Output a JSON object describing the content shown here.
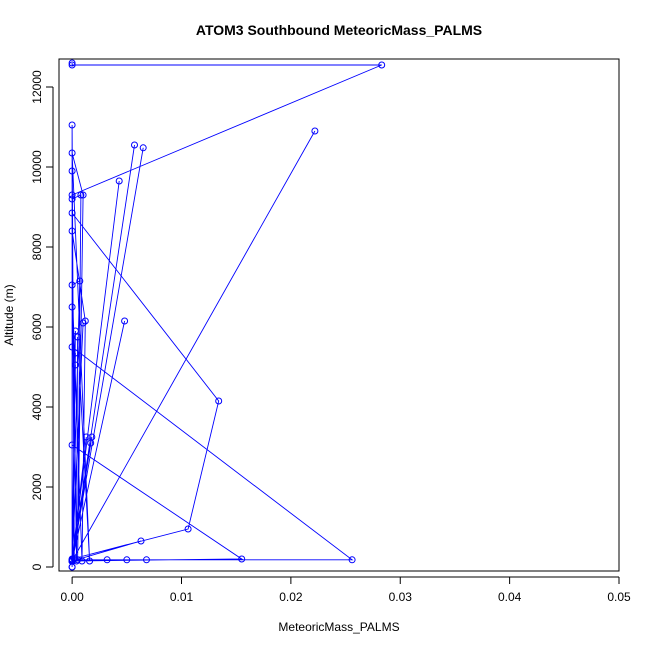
{
  "chart_data": {
    "type": "line",
    "title": "ATOM3 Southbound MeteoricMass_PALMS",
    "xlabel": "MeteoricMass_PALMS",
    "ylabel": "Altitude (m)",
    "xlim": [
      -0.0012,
      0.05
    ],
    "ylim": [
      -100,
      12700
    ],
    "x_ticks": [
      0.0,
      0.01,
      0.02,
      0.03,
      0.04,
      0.05
    ],
    "x_tick_labels": [
      "0.00",
      "0.01",
      "0.02",
      "0.03",
      "0.04",
      "0.05"
    ],
    "y_ticks": [
      0,
      2000,
      4000,
      6000,
      8000,
      10000,
      12000
    ],
    "y_tick_labels": [
      "0",
      "2000",
      "4000",
      "6000",
      "8000",
      "10000",
      "12000"
    ],
    "grid": false,
    "legend": false,
    "series_color": "#0000ff",
    "x": [
      0.0,
      0.0,
      0.0283,
      0.0,
      0.0,
      0.0002,
      0.0,
      0.0008,
      0.0005,
      0.001,
      0.0,
      0.0016,
      0.0005,
      0.0004,
      0.0,
      0.0012,
      0.0009,
      0.0,
      0.0007,
      0.0,
      0.0003,
      0.0,
      0.0048,
      0.0,
      0.0003,
      0.0,
      0.0057,
      0.0,
      0.001,
      0.0,
      0.0043,
      0.0,
      0.0065,
      0.0,
      0.0,
      0.0134,
      0.0106,
      0.0,
      0.0063,
      0.0,
      0.0222,
      0.0,
      0.0017,
      0.0,
      0.0013,
      0.0,
      0.0003,
      0.0,
      0.0018,
      0.0,
      0.0,
      0.0256,
      0.0,
      0.0,
      0.0155,
      0.0,
      0.0,
      0.0,
      0.0068,
      0.0,
      0.005,
      0.0,
      0.0032,
      0.0,
      0.0,
      0.0,
      0.0
    ],
    "y": [
      12600,
      12550,
      12550,
      9300,
      11050,
      200,
      9200,
      9300,
      180,
      9300,
      10350,
      150,
      5750,
      150,
      8400,
      6150,
      150,
      7050,
      7150,
      150,
      5900,
      150,
      6150,
      150,
      5350,
      150,
      10550,
      150,
      6100,
      150,
      9650,
      150,
      10480,
      150,
      8850,
      4150,
      950,
      200,
      650,
      150,
      10900,
      150,
      3100,
      150,
      3250,
      150,
      5050,
      150,
      3250,
      150,
      5500,
      180,
      180,
      3050,
      200,
      150,
      6500,
      150,
      180,
      150,
      180,
      150,
      180,
      150,
      9900,
      0,
      0
    ]
  }
}
